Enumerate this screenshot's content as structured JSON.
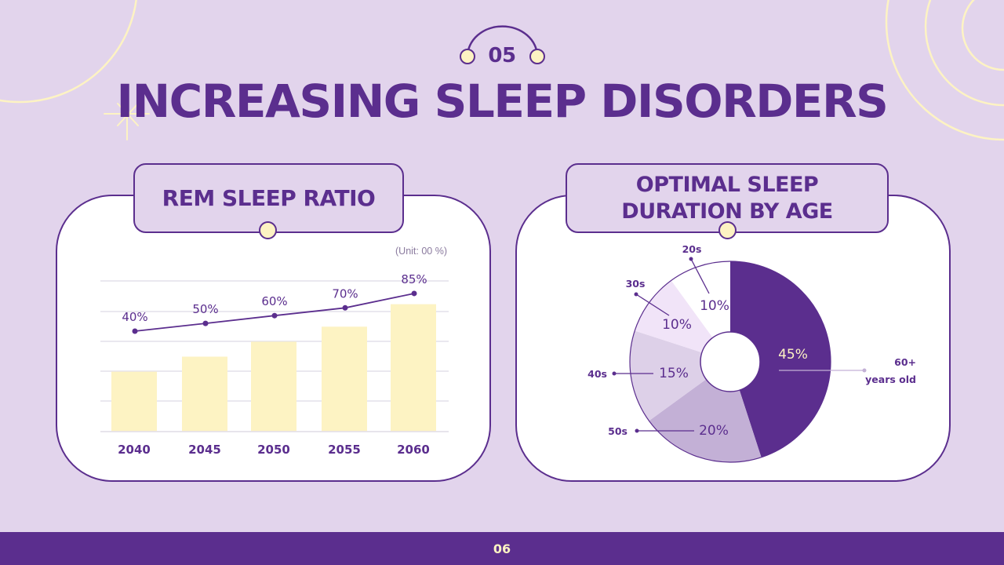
{
  "slide": {
    "section_number": "05",
    "title": "INCREASING SLEEP DISORDERS",
    "page_number": "06"
  },
  "colors": {
    "background": "#e2d4ec",
    "primary": "#5b2e8e",
    "accent_cream": "#fdf3c3",
    "bar_fill": "#fdf3c3",
    "gridline": "#e4e0ea",
    "panel": "#ffffff"
  },
  "left_panel": {
    "title": "REM SLEEP RATIO",
    "unit_note": "(Unit: 00 %)"
  },
  "right_panel": {
    "title_line1": "OPTIMAL SLEEP",
    "title_line2": "DURATION BY AGE"
  },
  "chart_data": [
    {
      "type": "bar",
      "title": "REM SLEEP RATIO",
      "subtitle": "(Unit: 00 %)",
      "categories": [
        "2040",
        "2045",
        "2050",
        "2055",
        "2060"
      ],
      "series": [
        {
          "name": "REM sleep ratio (bars)",
          "type": "bar",
          "values": [
            40,
            50,
            60,
            70,
            85
          ]
        },
        {
          "name": "REM sleep ratio (line)",
          "type": "line",
          "values": [
            40,
            50,
            60,
            70,
            85
          ]
        }
      ],
      "data_labels": [
        "40%",
        "50%",
        "60%",
        "70%",
        "85%"
      ],
      "xlabel": "",
      "ylabel": "",
      "grid": true,
      "legend": "none"
    },
    {
      "type": "pie",
      "title": "OPTIMAL SLEEP DURATION BY AGE",
      "donut": true,
      "categories": [
        "60+ years old",
        "50s",
        "40s",
        "30s",
        "20s"
      ],
      "values": [
        45,
        20,
        15,
        10,
        10
      ],
      "labels": [
        "45%",
        "20%",
        "15%",
        "10%",
        "10%"
      ],
      "slice_colors": [
        "#5b2e8e",
        "#c3b0d6",
        "#ddd0e8",
        "#f1e4f8",
        "#ffffff"
      ],
      "legend": "callout labels"
    }
  ]
}
